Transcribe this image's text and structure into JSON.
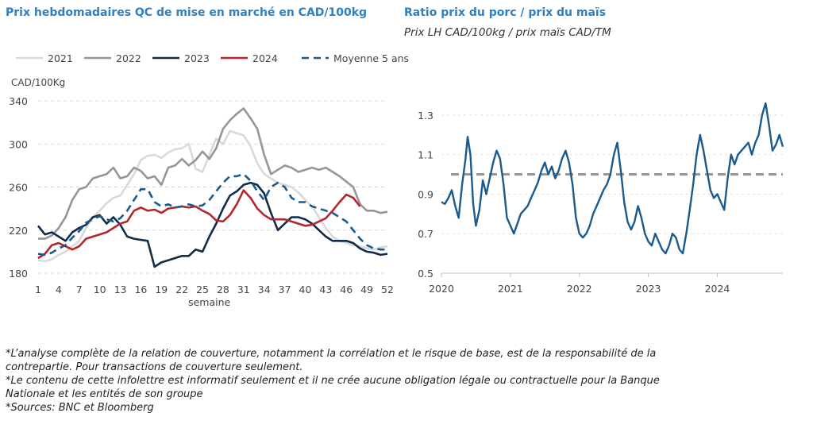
{
  "left_title": "Prix hebdomadaires QC de mise en marché en CAD/100kg",
  "right_title": "Ratio prix du porc / prix du maïs",
  "right_subtitle": "Prix LH CAD/100kg / prix maïs CAD/TM",
  "notes": [
    "*L’analyse complète de la relation de couverture, notamment la corrélation et le risque de base, est de la responsabilité de la contrepartie. Pour transactions de couverture seulement.",
    "*Le contenu de cette infolettre est informatif seulement et il ne crée aucune obligation légale ou contractuelle pour la Banque Nationale et les entités de son groupe",
    "*Sources: BNC et Bloomberg"
  ],
  "chart_data": [
    {
      "type": "line",
      "title": "Prix hebdomadaires QC de mise en marché en CAD/100kg",
      "ylabel": "CAD/100Kg",
      "xlabel": "semaine",
      "xlim": [
        1,
        52
      ],
      "ylim": [
        180,
        340
      ],
      "xticks": [
        1,
        4,
        7,
        10,
        13,
        16,
        19,
        22,
        25,
        28,
        31,
        34,
        37,
        40,
        43,
        46,
        49,
        52
      ],
      "yticks": [
        180,
        220,
        260,
        300,
        340
      ],
      "grid": "horizontal dashed",
      "legend": "top",
      "series": [
        {
          "name": "2021",
          "color": "#d9d9d9",
          "dash": "solid",
          "x": [
            1,
            2,
            3,
            4,
            5,
            6,
            7,
            8,
            9,
            10,
            11,
            12,
            13,
            14,
            15,
            16,
            17,
            18,
            19,
            20,
            21,
            22,
            23,
            24,
            25,
            26,
            27,
            28,
            29,
            30,
            31,
            32,
            33,
            34,
            35,
            36,
            37,
            38,
            39,
            40,
            41,
            42,
            43,
            44,
            45,
            46,
            47,
            48,
            49,
            50,
            51,
            52
          ],
          "values": [
            192,
            191,
            193,
            197,
            200,
            205,
            210,
            222,
            232,
            238,
            245,
            250,
            252,
            262,
            272,
            285,
            289,
            290,
            287,
            292,
            295,
            296,
            300,
            277,
            274,
            290,
            305,
            300,
            312,
            310,
            308,
            298,
            282,
            272,
            268,
            264,
            262,
            260,
            255,
            248,
            242,
            232,
            222,
            214,
            210,
            208,
            206,
            205,
            203,
            202,
            204,
            205
          ]
        },
        {
          "name": "2022",
          "color": "#969696",
          "dash": "solid",
          "x": [
            1,
            2,
            3,
            4,
            5,
            6,
            7,
            8,
            9,
            10,
            11,
            12,
            13,
            14,
            15,
            16,
            17,
            18,
            19,
            20,
            21,
            22,
            23,
            24,
            25,
            26,
            27,
            28,
            29,
            30,
            31,
            32,
            33,
            34,
            35,
            36,
            37,
            38,
            39,
            40,
            41,
            42,
            43,
            44,
            45,
            46,
            47,
            48,
            49,
            50,
            51,
            52
          ],
          "values": [
            212,
            212,
            215,
            222,
            232,
            248,
            258,
            260,
            268,
            270,
            272,
            278,
            268,
            270,
            278,
            275,
            268,
            270,
            262,
            278,
            280,
            286,
            280,
            285,
            293,
            286,
            296,
            314,
            322,
            328,
            333,
            324,
            314,
            290,
            272,
            276,
            280,
            278,
            274,
            276,
            278,
            276,
            278,
            274,
            270,
            265,
            260,
            244,
            238,
            238,
            236,
            237
          ]
        },
        {
          "name": "2023",
          "color": "#0f2c4a",
          "dash": "solid",
          "x": [
            1,
            2,
            3,
            4,
            5,
            6,
            7,
            8,
            9,
            10,
            11,
            12,
            13,
            14,
            15,
            16,
            17,
            18,
            19,
            20,
            21,
            22,
            23,
            24,
            25,
            26,
            27,
            28,
            29,
            30,
            31,
            32,
            33,
            34,
            35,
            36,
            37,
            38,
            39,
            40,
            41,
            42,
            43,
            44,
            45,
            46,
            47,
            48,
            49,
            50,
            51,
            52
          ],
          "values": [
            224,
            216,
            218,
            214,
            210,
            218,
            222,
            225,
            232,
            234,
            226,
            232,
            225,
            214,
            212,
            211,
            210,
            186,
            190,
            192,
            194,
            196,
            196,
            202,
            200,
            214,
            226,
            240,
            252,
            256,
            262,
            264,
            262,
            254,
            236,
            220,
            226,
            232,
            232,
            230,
            226,
            220,
            214,
            210,
            210,
            210,
            208,
            203,
            200,
            199,
            197,
            198
          ]
        },
        {
          "name": "2024",
          "color": "#b5252c",
          "dash": "solid",
          "x": [
            1,
            2,
            3,
            4,
            5,
            6,
            7,
            8,
            9,
            10,
            11,
            12,
            13,
            14,
            15,
            16,
            17,
            18,
            19,
            20,
            21,
            22,
            23,
            24,
            25,
            26,
            27,
            28,
            29,
            30,
            31,
            32,
            33,
            34,
            35,
            36,
            37,
            38,
            39,
            40,
            41,
            42,
            43,
            44,
            45,
            46,
            47,
            48
          ],
          "values": [
            194,
            198,
            206,
            208,
            205,
            202,
            205,
            212,
            214,
            216,
            218,
            222,
            226,
            228,
            238,
            241,
            238,
            239,
            236,
            240,
            241,
            242,
            241,
            242,
            238,
            235,
            229,
            228,
            234,
            244,
            257,
            250,
            240,
            234,
            230,
            230,
            230,
            228,
            226,
            224,
            225,
            228,
            231,
            238,
            246,
            253,
            250,
            242
          ]
        },
        {
          "name": "Moyenne 5 ans",
          "color": "#1b5a8c",
          "dash": "dashed",
          "x": [
            1,
            2,
            3,
            4,
            5,
            6,
            7,
            8,
            9,
            10,
            11,
            12,
            13,
            14,
            15,
            16,
            17,
            18,
            19,
            20,
            21,
            22,
            23,
            24,
            25,
            26,
            27,
            28,
            29,
            30,
            31,
            32,
            33,
            34,
            35,
            36,
            37,
            38,
            39,
            40,
            41,
            42,
            43,
            44,
            45,
            46,
            47,
            48,
            49,
            50,
            51,
            52
          ],
          "values": [
            198,
            197,
            199,
            203,
            206,
            213,
            219,
            227,
            230,
            233,
            230,
            228,
            231,
            238,
            248,
            258,
            258,
            246,
            242,
            244,
            241,
            242,
            244,
            242,
            243,
            248,
            256,
            264,
            270,
            270,
            272,
            266,
            256,
            248,
            260,
            264,
            260,
            250,
            246,
            246,
            242,
            240,
            238,
            236,
            232,
            228,
            220,
            212,
            206,
            203,
            202,
            202
          ]
        }
      ]
    },
    {
      "type": "line",
      "title": "Ratio prix du porc / prix du maïs",
      "subtitle": "Prix LH CAD/100kg / prix maïs CAD/TM",
      "xlim": [
        2020.0,
        2024.95
      ],
      "ylim": [
        0.5,
        1.4
      ],
      "xticks": [
        "2020",
        "2021",
        "2022",
        "2023",
        "2024"
      ],
      "yticks": [
        0.5,
        0.7,
        0.9,
        1.1,
        1.3
      ],
      "grid": "horizontal dashed",
      "reference_line": {
        "value": 1.0,
        "color": "#969696",
        "style": "dashed"
      },
      "series": [
        {
          "name": "",
          "color": "#1b5a8c",
          "x": [
            2020.0,
            2020.05,
            2020.1,
            2020.15,
            2020.2,
            2020.25,
            2020.3,
            2020.35,
            2020.38,
            2020.42,
            2020.46,
            2020.5,
            2020.55,
            2020.6,
            2020.65,
            2020.7,
            2020.75,
            2020.8,
            2020.85,
            2020.9,
            2020.95,
            2021.0,
            2021.05,
            2021.1,
            2021.15,
            2021.2,
            2021.25,
            2021.3,
            2021.35,
            2021.4,
            2021.45,
            2021.5,
            2021.55,
            2021.6,
            2021.65,
            2021.7,
            2021.75,
            2021.8,
            2021.85,
            2021.9,
            2021.95,
            2022.0,
            2022.05,
            2022.1,
            2022.15,
            2022.2,
            2022.25,
            2022.3,
            2022.35,
            2022.4,
            2022.45,
            2022.5,
            2022.55,
            2022.6,
            2022.65,
            2022.7,
            2022.75,
            2022.8,
            2022.85,
            2022.9,
            2022.95,
            2023.0,
            2023.05,
            2023.1,
            2023.15,
            2023.2,
            2023.25,
            2023.3,
            2023.35,
            2023.4,
            2023.45,
            2023.5,
            2023.55,
            2023.6,
            2023.65,
            2023.7,
            2023.75,
            2023.8,
            2023.85,
            2023.9,
            2023.95,
            2024.0,
            2024.05,
            2024.1,
            2024.15,
            2024.2,
            2024.25,
            2024.3,
            2024.35,
            2024.4,
            2024.45,
            2024.5,
            2024.55,
            2024.6,
            2024.65,
            2024.7,
            2024.75,
            2024.8,
            2024.85,
            2024.9,
            2024.95
          ],
          "values": [
            0.86,
            0.85,
            0.88,
            0.92,
            0.84,
            0.78,
            0.95,
            1.08,
            1.19,
            1.1,
            0.85,
            0.74,
            0.82,
            0.97,
            0.9,
            0.98,
            1.06,
            1.12,
            1.08,
            0.95,
            0.78,
            0.74,
            0.7,
            0.75,
            0.8,
            0.82,
            0.84,
            0.88,
            0.92,
            0.96,
            1.02,
            1.06,
            1.0,
            1.04,
            0.98,
            1.02,
            1.08,
            1.12,
            1.06,
            0.95,
            0.78,
            0.7,
            0.68,
            0.7,
            0.74,
            0.8,
            0.84,
            0.88,
            0.92,
            0.95,
            1.0,
            1.1,
            1.16,
            1.02,
            0.86,
            0.76,
            0.72,
            0.76,
            0.84,
            0.78,
            0.7,
            0.66,
            0.64,
            0.7,
            0.66,
            0.62,
            0.6,
            0.64,
            0.7,
            0.68,
            0.62,
            0.6,
            0.7,
            0.82,
            0.95,
            1.1,
            1.2,
            1.12,
            1.02,
            0.92,
            0.88,
            0.9,
            0.86,
            0.82,
            0.98,
            1.1,
            1.05,
            1.1,
            1.12,
            1.14,
            1.16,
            1.1,
            1.16,
            1.2,
            1.3,
            1.36,
            1.25,
            1.12,
            1.15,
            1.2,
            1.14
          ]
        }
      ]
    }
  ]
}
